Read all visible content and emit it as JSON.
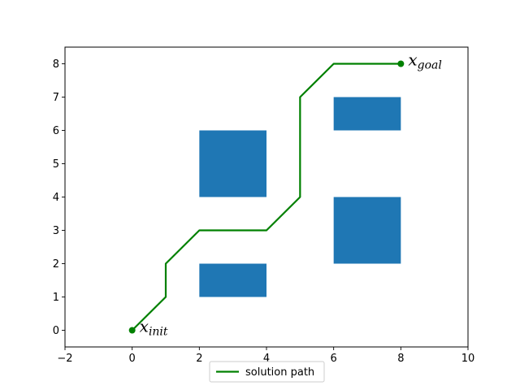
{
  "chart_data": {
    "type": "line",
    "title": "",
    "xlabel": "",
    "ylabel": "",
    "xlim": [
      -2,
      10
    ],
    "ylim": [
      -0.5,
      8.5
    ],
    "x_ticks": [
      -2,
      0,
      2,
      4,
      6,
      8,
      10
    ],
    "x_tick_labels": [
      "−2",
      "0",
      "2",
      "4",
      "6",
      "8",
      "10"
    ],
    "y_ticks": [
      0,
      1,
      2,
      3,
      4,
      5,
      6,
      7,
      8
    ],
    "y_tick_labels": [
      "0",
      "1",
      "2",
      "3",
      "4",
      "5",
      "6",
      "7",
      "8"
    ],
    "grid": false,
    "obstacle_color": "#1f77b4",
    "obstacles": [
      {
        "name": "obstacle-1",
        "x": [
          2,
          4
        ],
        "y": [
          1,
          2
        ]
      },
      {
        "name": "obstacle-2",
        "x": [
          2,
          4
        ],
        "y": [
          4,
          6
        ]
      },
      {
        "name": "obstacle-3",
        "x": [
          6,
          8
        ],
        "y": [
          2,
          4
        ]
      },
      {
        "name": "obstacle-4",
        "x": [
          6,
          8
        ],
        "y": [
          6,
          7
        ]
      }
    ],
    "series": [
      {
        "name": "solution path",
        "color": "#008000",
        "points": [
          [
            0,
            0
          ],
          [
            1,
            1
          ],
          [
            1,
            2
          ],
          [
            2,
            3
          ],
          [
            4,
            3
          ],
          [
            5,
            4
          ],
          [
            5,
            7
          ],
          [
            6,
            8
          ],
          [
            8,
            8
          ]
        ]
      }
    ],
    "markers": [
      {
        "name": "start",
        "x": 0,
        "y": 0,
        "color": "#008000"
      },
      {
        "name": "goal",
        "x": 8,
        "y": 8,
        "color": "#008000"
      }
    ],
    "annotations": [
      {
        "name": "init",
        "x": 0,
        "y": 0,
        "base": "x",
        "sub": "init"
      },
      {
        "name": "goal",
        "x": 8,
        "y": 8,
        "base": "x",
        "sub": "goal"
      }
    ],
    "legend": {
      "placement": "bottom-center",
      "entries": [
        {
          "label": "solution path",
          "color": "#008000"
        }
      ]
    }
  }
}
